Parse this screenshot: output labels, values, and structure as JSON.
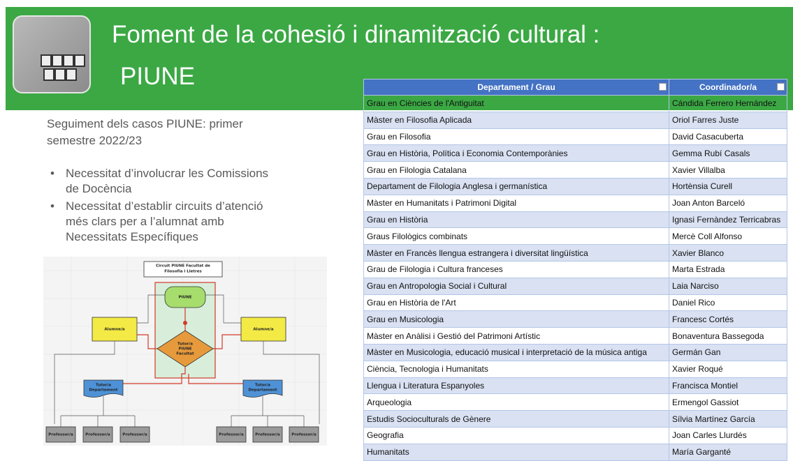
{
  "header": {
    "title": [
      "Foment de la cohesió i dinamització cultural :",
      "PIUNE"
    ]
  },
  "intro": [
    "Seguiment dels casos PIUNE: primer",
    "semestre 2022/23"
  ],
  "bullets": [
    [
      "Necessitat d’involucrar les Comissions",
      "de Docència"
    ],
    [
      "Necessitat d’establir circuits d’atenció",
      "més clars per a l’alumnat amb",
      "Necessitats Específiques"
    ]
  ],
  "diagram": {
    "title": [
      "Circuit PIUNE Facultat de",
      "Filosofia i Lletres"
    ],
    "piune": "PIUNE",
    "alumne": [
      "Alumne/a",
      "Alumne/a"
    ],
    "tutor_piune": [
      "Tutor/a",
      "PIUNE",
      "Facultat"
    ],
    "tutor_departament": [
      [
        "Tutor/a",
        "Departament"
      ],
      [
        "Tutor/a",
        "Departament"
      ]
    ],
    "professors": [
      "Professor/a",
      "Professor/a",
      "Professor/a",
      "Professor/a",
      "Professor/a",
      "Professor/a"
    ]
  },
  "table": {
    "columns": [
      "Departament / Grau",
      "Coordinador/a"
    ],
    "rows": [
      [
        "Grau en Ciències de l'Antiguitat",
        "Cándida Ferrero Hernández"
      ],
      [
        "Màster en Filosofia Aplicada",
        "Oriol Farres Juste"
      ],
      [
        "Grau en Filosofia",
        "David Casacuberta"
      ],
      [
        "Grau en Història, Política i Economia Contemporànies",
        "Gemma Rubí Casals"
      ],
      [
        "Grau en Filologia Catalana",
        "Xavier Villalba"
      ],
      [
        "Departament de Filologia Anglesa i germanística",
        "Hortènsia Curell"
      ],
      [
        "Màster en Humanitats i Patrimoni Digital",
        "Joan Anton Barceló"
      ],
      [
        "Grau en Història",
        "Ignasi Fernàndez Terricabras"
      ],
      [
        "Graus Filològics combinats",
        "Mercè Coll Alfonso"
      ],
      [
        "Màster en Francès llengua estrangera i diversitat lingüística",
        "Xavier Blanco"
      ],
      [
        "Grau de Filologia i Cultura franceses",
        "Marta Estrada"
      ],
      [
        "Grau en Antropologia Social i Cultural",
        "Laia Narciso"
      ],
      [
        "Grau en Història de l'Art",
        "Daniel Rico"
      ],
      [
        "Grau en Musicologia",
        "Francesc Cortés"
      ],
      [
        "Màster en Anàlisi i Gestió del Patrimoni Artístic",
        "Bonaventura Bassegoda"
      ],
      [
        "Màster en Musicologia, educació musical i interpretació de la música antiga",
        "Germán Gan"
      ],
      [
        "Ciència, Tecnologia i Humanitats",
        "Xavier Roqué"
      ],
      [
        "Llengua i Literatura Espanyoles",
        "Francisca Montiel"
      ],
      [
        "Arqueologia",
        "Ermengol Gassiot"
      ],
      [
        "Estudis Socioculturals de Gènere",
        "Sílvia Martínez García"
      ],
      [
        "Geografia",
        "Joan Carles Llurdés"
      ],
      [
        "Humanitats",
        "María Garganté"
      ]
    ]
  }
}
